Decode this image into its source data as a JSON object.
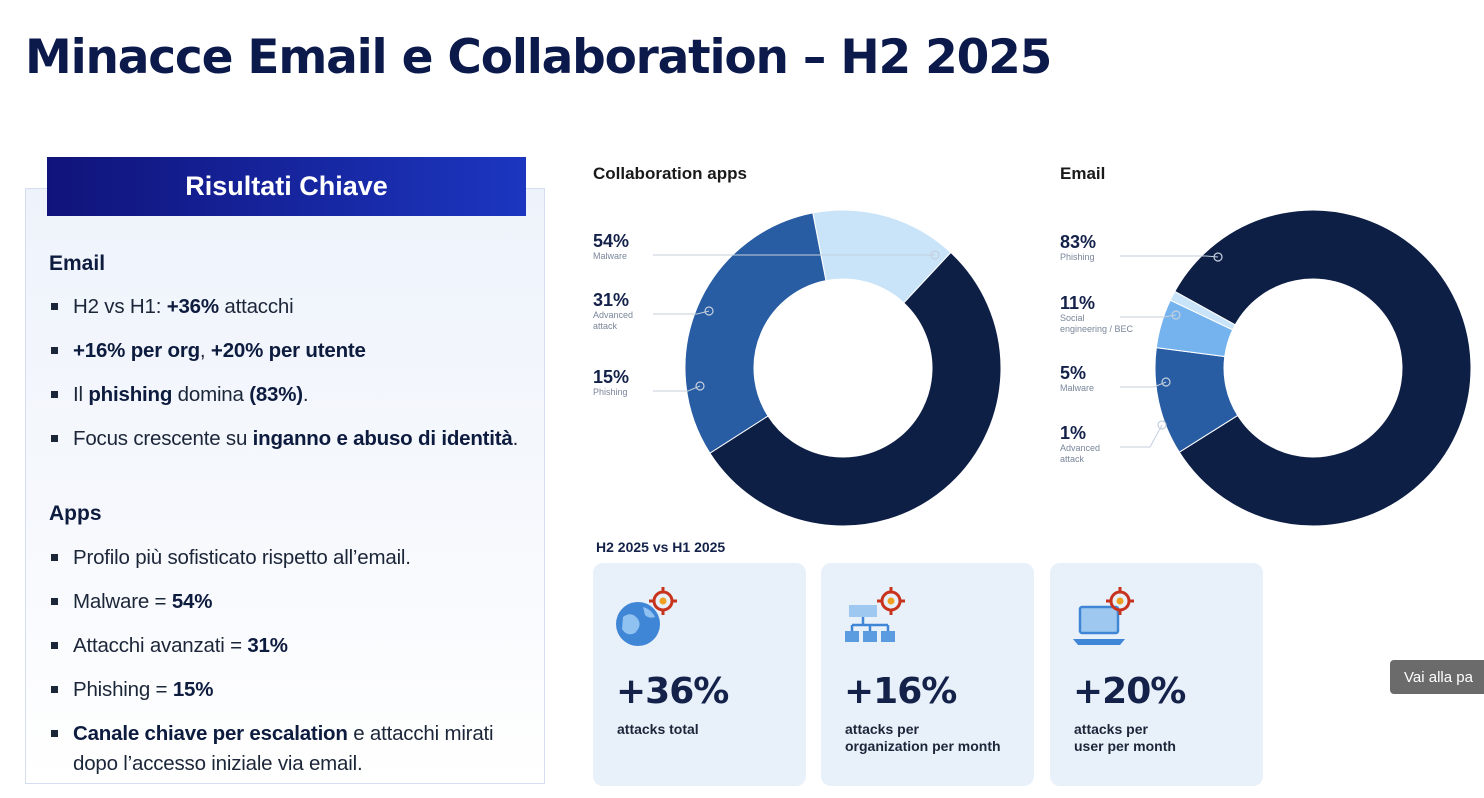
{
  "title": "Minacce Email e Collaboration – H2 2025",
  "panel": {
    "header": "Risultati Chiave",
    "email_heading": "Email",
    "email_items": [
      [
        {
          "t": "H2 vs H1: ",
          "b": false
        },
        {
          "t": "+36%",
          "b": true
        },
        {
          "t": " attacchi",
          "b": false
        }
      ],
      [
        {
          "t": "+16% per org",
          "b": true
        },
        {
          "t": ", ",
          "b": false
        },
        {
          "t": "+20% per utente",
          "b": true
        }
      ],
      [
        {
          "t": "Il ",
          "b": false
        },
        {
          "t": "phishing",
          "b": true
        },
        {
          "t": " domina ",
          "b": false
        },
        {
          "t": "(83%)",
          "b": true
        },
        {
          "t": ".",
          "b": false
        }
      ],
      [
        {
          "t": "Focus crescente su ",
          "b": false
        },
        {
          "t": "inganno e abuso di identità",
          "b": true
        },
        {
          "t": ".",
          "b": false
        }
      ]
    ],
    "apps_heading": "Apps",
    "apps_items": [
      [
        {
          "t": "Profilo più sofisticato rispetto all’email.",
          "b": false
        }
      ],
      [
        {
          "t": "Malware = ",
          "b": false
        },
        {
          "t": "54%",
          "b": true
        }
      ],
      [
        {
          "t": "Attacchi avanzati = ",
          "b": false
        },
        {
          "t": "31%",
          "b": true
        }
      ],
      [
        {
          "t": "Phishing = ",
          "b": false
        },
        {
          "t": "15%",
          "b": true
        }
      ],
      [
        {
          "t": "Canale chiave per escalation",
          "b": true
        },
        {
          "t": " e attacchi mirati dopo l’accesso iniziale via email.",
          "b": false
        }
      ]
    ]
  },
  "chart_data": [
    {
      "type": "pie",
      "title": "Collaboration apps",
      "categories": [
        "Malware",
        "Advanced\nattack",
        "Phishing"
      ],
      "values": [
        54,
        31,
        15
      ],
      "labels": [
        "54%",
        "31%",
        "15%"
      ],
      "colors": [
        "#0e1f45",
        "#285ca3",
        "#c9e4f9"
      ]
    },
    {
      "type": "pie",
      "title": "Email",
      "categories": [
        "Phishing",
        "Social\nengineering / BEC",
        "Malware",
        "Advanced\nattack"
      ],
      "values": [
        83,
        11,
        5,
        1
      ],
      "labels": [
        "83%",
        "11%",
        "5%",
        "1%"
      ],
      "colors": [
        "#0e1f45",
        "#285ca3",
        "#75b3ee",
        "#c9e4f9"
      ]
    }
  ],
  "comparison": {
    "heading": "H2 2025 vs H1 2025",
    "cards": [
      {
        "value": "+36%",
        "caption": "attacks total",
        "icon": "globe-target-icon"
      },
      {
        "value": "+16%",
        "caption": "attacks per\norganization per month",
        "icon": "org-chart-target-icon"
      },
      {
        "value": "+20%",
        "caption": "attacks per\nuser per month",
        "icon": "laptop-target-icon"
      }
    ]
  },
  "tooltip": "Vai alla pa"
}
